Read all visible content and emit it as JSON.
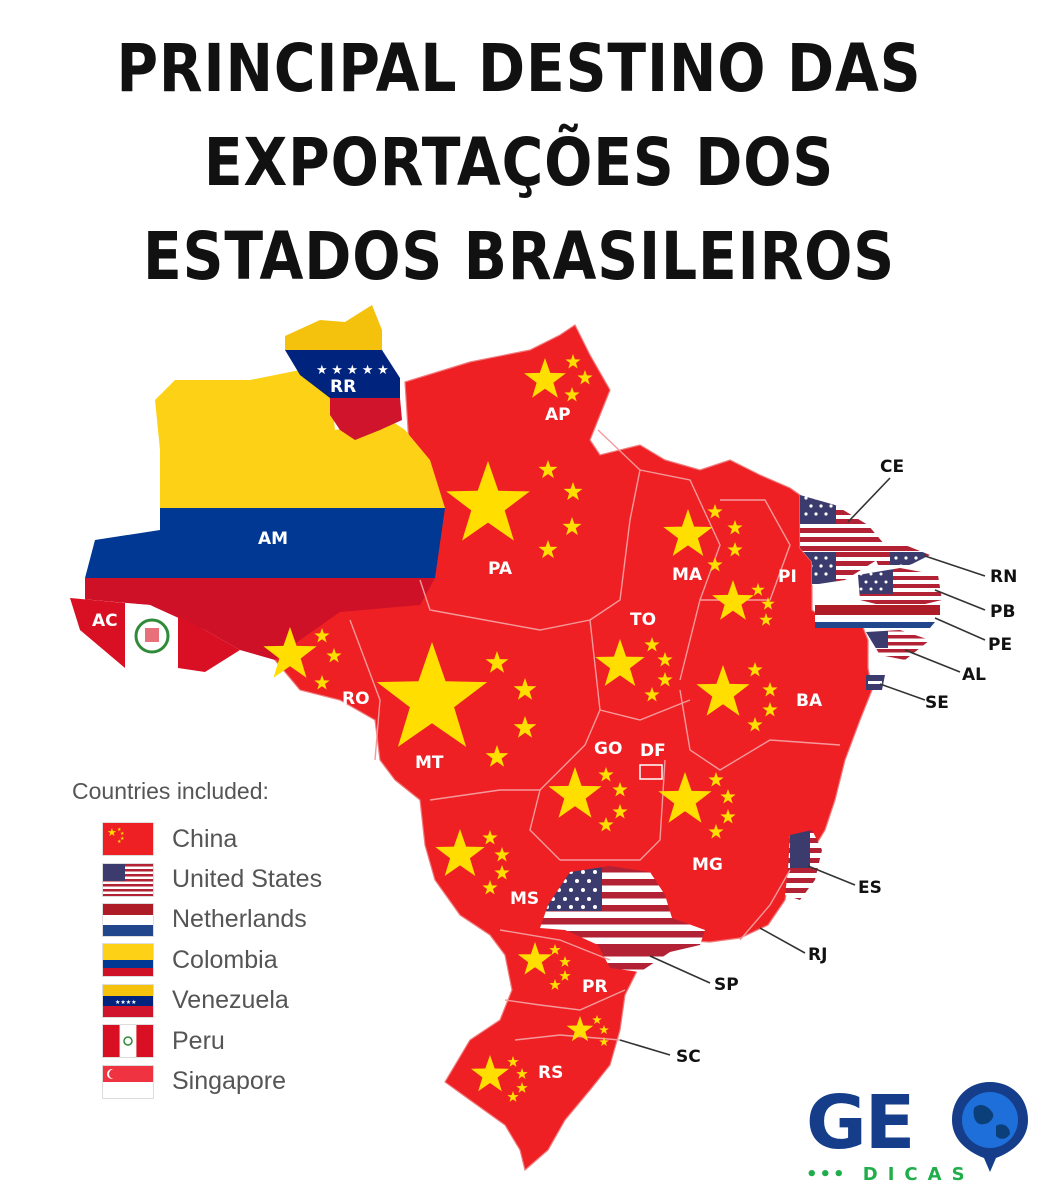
{
  "title": {
    "line1": "PRINCIPAL DESTINO DAS",
    "line2": "EXPORTAÇÕES DOS",
    "line3": "ESTADOS BRASILEIROS"
  },
  "states": [
    {
      "abbr": "RR",
      "destination": "Venezuela"
    },
    {
      "abbr": "AP",
      "destination": "China"
    },
    {
      "abbr": "AM",
      "destination": "Colombia"
    },
    {
      "abbr": "PA",
      "destination": "China"
    },
    {
      "abbr": "AC",
      "destination": "Peru"
    },
    {
      "abbr": "RO",
      "destination": "China"
    },
    {
      "abbr": "MT",
      "destination": "China"
    },
    {
      "abbr": "MA",
      "destination": "China"
    },
    {
      "abbr": "PI",
      "destination": "China"
    },
    {
      "abbr": "TO",
      "destination": "China"
    },
    {
      "abbr": "BA",
      "destination": "China"
    },
    {
      "abbr": "GO",
      "destination": "China"
    },
    {
      "abbr": "DF",
      "destination": "China"
    },
    {
      "abbr": "MG",
      "destination": "China"
    },
    {
      "abbr": "MS",
      "destination": "China"
    },
    {
      "abbr": "PR",
      "destination": "China"
    },
    {
      "abbr": "RS",
      "destination": "China"
    },
    {
      "abbr": "CE",
      "destination": "United States"
    },
    {
      "abbr": "RN",
      "destination": "United States"
    },
    {
      "abbr": "PB",
      "destination": "United States"
    },
    {
      "abbr": "PE",
      "destination": "Netherlands"
    },
    {
      "abbr": "AL",
      "destination": "United States"
    },
    {
      "abbr": "SE",
      "destination": "United States"
    },
    {
      "abbr": "ES",
      "destination": "United States"
    },
    {
      "abbr": "SP",
      "destination": "United States"
    },
    {
      "abbr": "RJ",
      "destination": "China"
    },
    {
      "abbr": "SC",
      "destination": "China"
    }
  ],
  "legend": {
    "title": "Countries included:",
    "items": [
      {
        "label": "China",
        "flag": "china"
      },
      {
        "label": "United States",
        "flag": "usa"
      },
      {
        "label": "Netherlands",
        "flag": "netherlands"
      },
      {
        "label": "Colombia",
        "flag": "colombia"
      },
      {
        "label": "Venezuela",
        "flag": "venezuela"
      },
      {
        "label": "Peru",
        "flag": "peru"
      },
      {
        "label": "Singapore",
        "flag": "singapore"
      }
    ]
  },
  "logo": {
    "brand": "GE",
    "sub": "DICAS",
    "icon": "globe-pin-icon"
  },
  "colors": {
    "china_red": "#ee2024",
    "china_star": "#ffde00",
    "usa_red": "#b22234",
    "usa_blue": "#3c3b6e",
    "colombia_yellow": "#fcd116",
    "colombia_blue": "#003893",
    "colombia_red": "#ce1126",
    "venezuela_yellow": "#f4c20d",
    "venezuela_blue": "#00247d",
    "venezuela_red": "#cf142b",
    "peru_red": "#d91023",
    "netherlands_blue": "#21468b",
    "brand_blue": "#153d8a",
    "brand_green": "#1fae4a"
  }
}
